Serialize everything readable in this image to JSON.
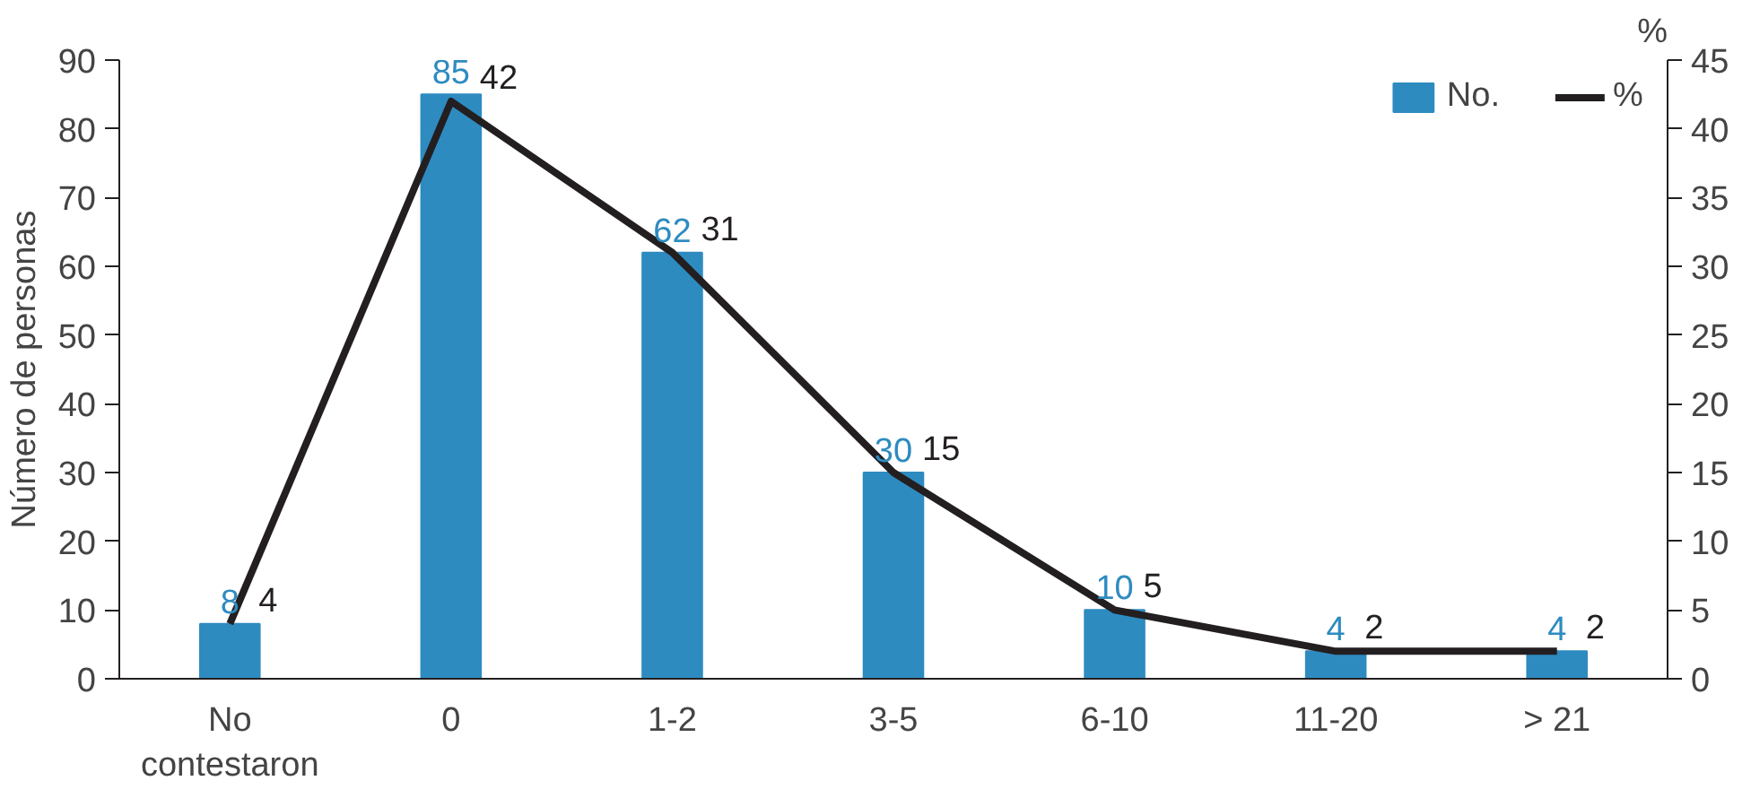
{
  "chart_data": {
    "type": "bar",
    "categories": [
      "No\ncontestaron",
      "0",
      "1-2",
      "3-5",
      "6-10",
      "11-20",
      "> 21"
    ],
    "ylabel": "Número de personas",
    "y2label": "%",
    "ylim": [
      0,
      90
    ],
    "yticks": [
      0,
      10,
      20,
      30,
      40,
      50,
      60,
      70,
      80,
      90
    ],
    "y2lim": [
      0,
      45
    ],
    "y2ticks": [
      0,
      5,
      10,
      15,
      20,
      25,
      30,
      35,
      40,
      45
    ],
    "series": [
      {
        "name": "No.",
        "color": "#2e8bc0",
        "values": [
          8,
          85,
          62,
          30,
          10,
          4,
          4
        ]
      },
      {
        "name": "%",
        "type": "line",
        "axis": "y2",
        "color": "#231f20",
        "values": [
          4,
          42,
          31,
          15,
          5,
          2,
          2
        ]
      }
    ],
    "data_labels": true,
    "legend": "top right",
    "grid": false,
    "marker": "none",
    "line_style": "solid"
  }
}
